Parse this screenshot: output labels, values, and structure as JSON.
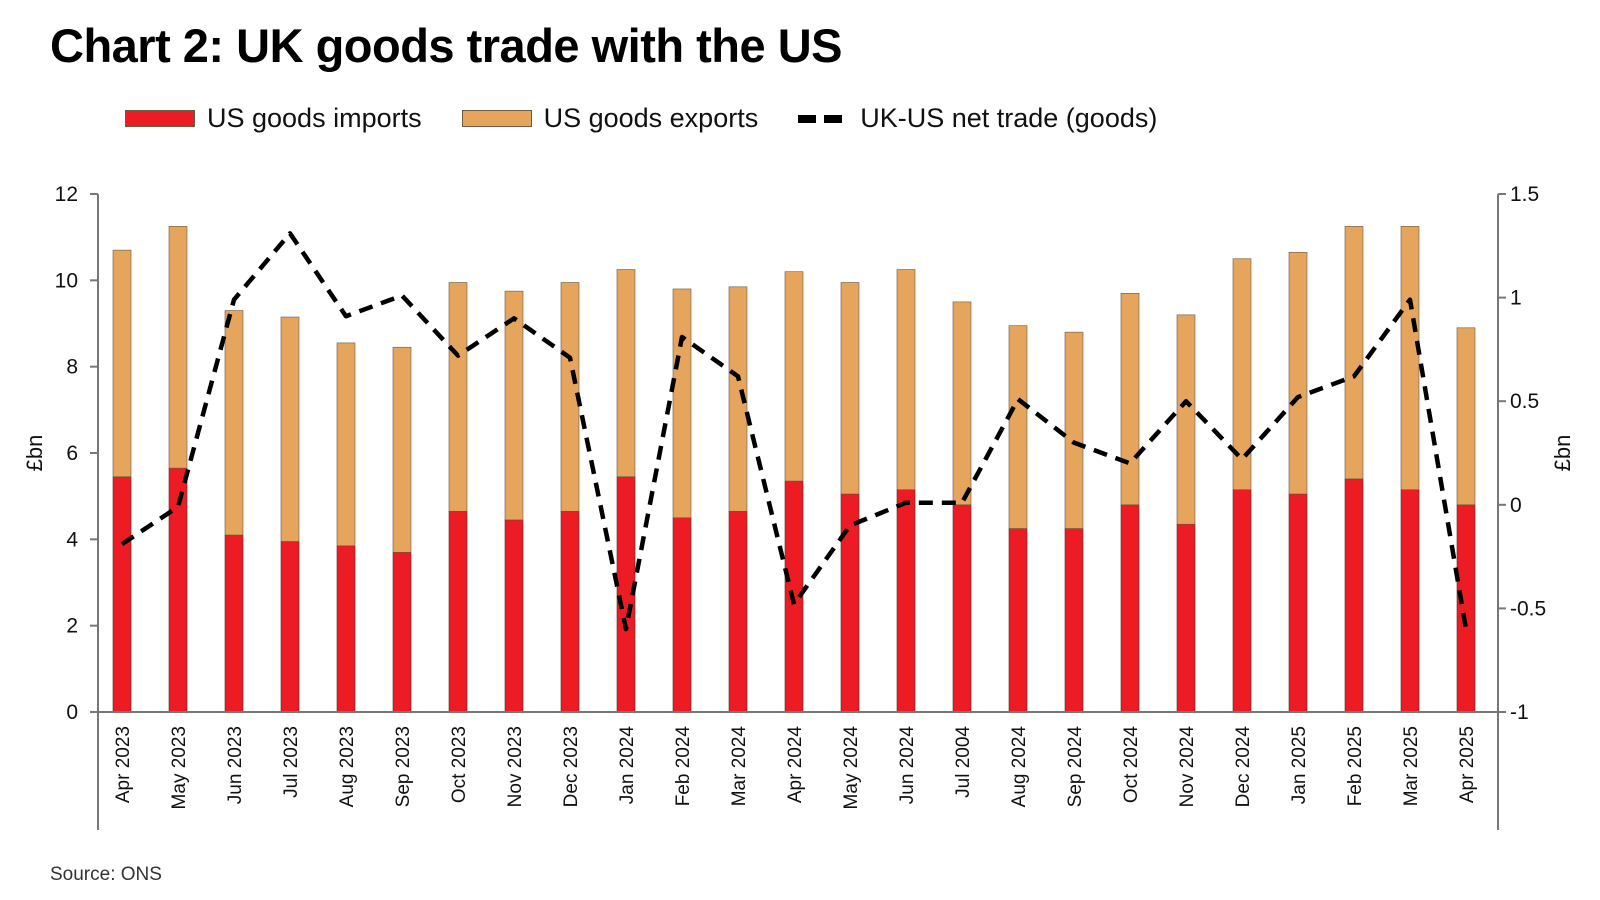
{
  "title": "Chart 2: UK goods trade with the US",
  "source": "Source: ONS",
  "colors": {
    "imports": "#ed1c24",
    "exports": "#e5a55c",
    "net": "#000000",
    "axis": "#777777"
  },
  "legend": [
    {
      "label": "US goods imports",
      "kind": "bar",
      "color": "#ed1c24"
    },
    {
      "label": "US goods exports",
      "kind": "bar",
      "color": "#e5a55c"
    },
    {
      "label": "UK-US net trade (goods)",
      "kind": "dashed-line",
      "color": "#000000"
    }
  ],
  "chart_data": {
    "type": "bar",
    "subtype": "stacked-bar-with-line-secondary-axis",
    "title": "Chart 2: UK goods trade with the US",
    "categories": [
      "Apr 2023",
      "May 2023",
      "Jun 2023",
      "Jul 2023",
      "Aug 2023",
      "Sep 2023",
      "Oct 2023",
      "Nov 2023",
      "Dec 2023",
      "Jan 2024",
      "Feb 2024",
      "Mar 2024",
      "Apr 2024",
      "May 2024",
      "Jun 2024",
      "Jul 2004",
      "Aug 2024",
      "Sep 2024",
      "Oct 2024",
      "Nov 2024",
      "Dec 2024",
      "Jan 2025",
      "Feb 2025",
      "Mar 2025",
      "Apr 2025"
    ],
    "series": [
      {
        "name": "US goods imports",
        "type": "bar",
        "axis": "left",
        "values": [
          5.45,
          5.65,
          4.1,
          3.95,
          3.85,
          3.7,
          4.65,
          4.45,
          4.65,
          5.45,
          4.5,
          4.65,
          5.35,
          5.05,
          5.15,
          4.8,
          4.25,
          4.25,
          4.8,
          4.35,
          5.15,
          5.05,
          5.4,
          5.15,
          4.8
        ]
      },
      {
        "name": "US goods exports",
        "type": "bar",
        "axis": "left",
        "values": [
          5.25,
          5.6,
          5.2,
          5.2,
          4.7,
          4.75,
          5.3,
          5.3,
          5.3,
          4.8,
          5.3,
          5.2,
          4.85,
          4.9,
          5.1,
          4.7,
          4.7,
          4.55,
          4.9,
          4.85,
          5.35,
          5.6,
          5.85,
          6.1,
          4.1
        ]
      },
      {
        "name": "UK-US net trade (goods)",
        "type": "line",
        "style": "dashed",
        "axis": "right",
        "values": [
          -0.19,
          -0.01,
          0.99,
          1.31,
          0.91,
          1.01,
          0.72,
          0.9,
          0.71,
          -0.6,
          0.81,
          0.62,
          -0.48,
          -0.1,
          0.01,
          0.01,
          0.51,
          0.3,
          0.2,
          0.5,
          0.22,
          0.52,
          0.62,
          0.99,
          -0.6
        ]
      }
    ],
    "xlabel": "",
    "ylabel": "£bn",
    "ylabel_right": "£bn",
    "ylim": [
      0,
      12
    ],
    "ylim_right": [
      -1,
      1.5
    ],
    "yticks": [
      0,
      2,
      4,
      6,
      8,
      10,
      12
    ],
    "yticks_right": [
      -1,
      -0.5,
      0,
      0.5,
      1,
      1.5
    ],
    "ytick_labels": [
      "0",
      "2",
      "4",
      "6",
      "8",
      "10",
      "12"
    ],
    "ytick_labels_right": [
      "-1",
      "-0.5",
      "0",
      "0.5",
      "1",
      "1.5"
    ],
    "grid": false,
    "legend_position": "top-left"
  }
}
